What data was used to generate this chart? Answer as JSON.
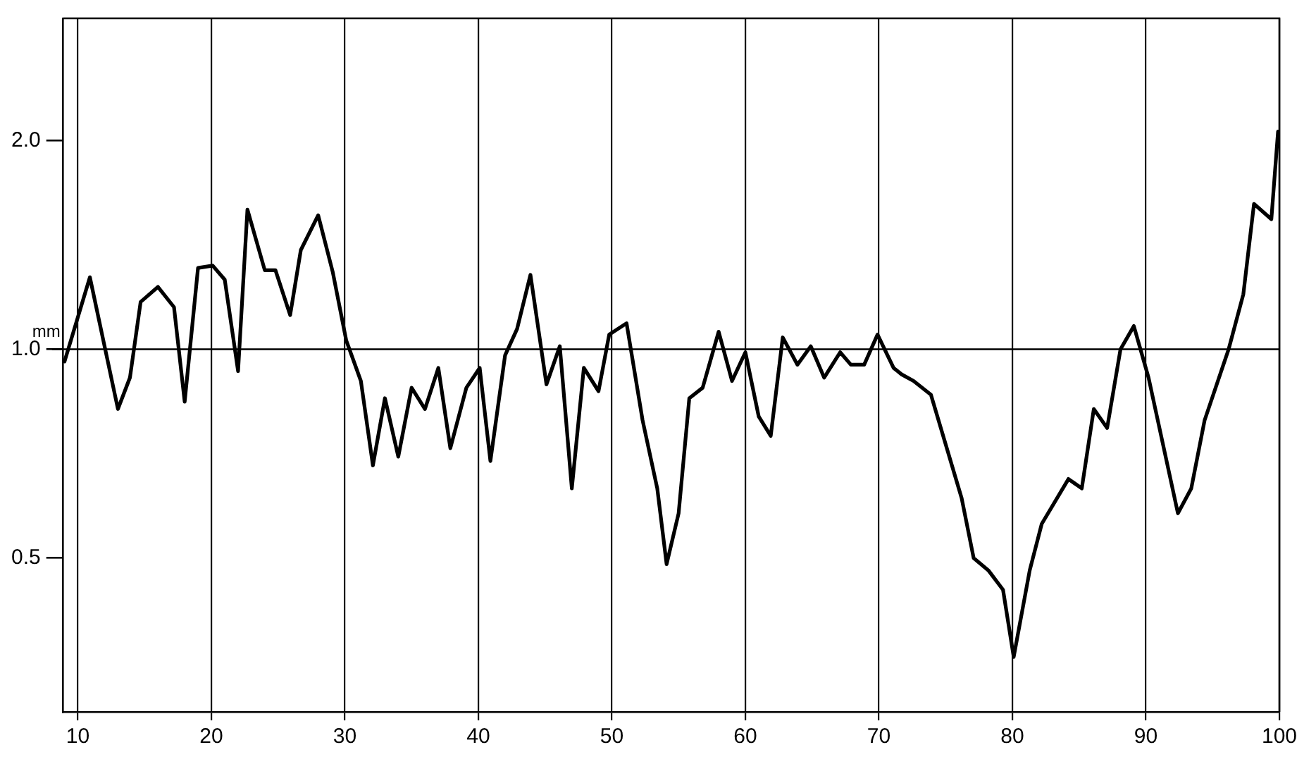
{
  "chart_data": {
    "type": "line",
    "ylabel": "mm",
    "log": "y",
    "grid": "x",
    "marker": "none",
    "line_style": "solid",
    "xlim": [
      8.9,
      100
    ],
    "xticks": [
      10,
      20,
      30,
      40,
      50,
      60,
      70,
      80,
      90,
      100
    ],
    "ylim": [
      0.3,
      3.0
    ],
    "yticks": [
      {
        "value": 0.5,
        "label": "0.5"
      },
      {
        "value": 1,
        "label": "1.0"
      },
      {
        "value": 2,
        "label": "2.0"
      }
    ],
    "ref_lines": [
      {
        "axis": "y",
        "value": 1,
        "color": "#000000"
      }
    ],
    "series": [
      {
        "color": "#000000",
        "x": [
          9.0,
          10.9,
          13.0,
          13.9,
          14.7,
          16.0,
          17.2,
          18.0,
          19.0,
          20.1,
          21.0,
          22.0,
          22.7,
          24.0,
          24.8,
          25.9,
          26.7,
          28.0,
          29.1,
          30.1,
          31.2,
          32.1,
          33.0,
          34.0,
          35.0,
          36.0,
          37.0,
          37.9,
          39.1,
          40.1,
          40.9,
          42.0,
          42.9,
          43.9,
          45.1,
          46.1,
          47.0,
          47.9,
          49.0,
          49.8,
          51.1,
          52.3,
          53.4,
          54.1,
          55.0,
          55.8,
          56.8,
          58.0,
          59.0,
          60.0,
          61.0,
          61.9,
          62.8,
          63.9,
          64.9,
          65.9,
          67.1,
          67.9,
          68.9,
          69.9,
          71.1,
          71.7,
          72.6,
          73.9,
          76.2,
          77.1,
          78.2,
          79.3,
          80.1,
          81.3,
          82.2,
          84.2,
          85.2,
          86.1,
          87.1,
          88.1,
          89.1,
          90.2,
          92.4,
          93.4,
          94.4,
          96.2,
          97.3,
          98.1,
          99.4,
          99.9
        ],
        "values": [
          0.96,
          1.27,
          0.82,
          0.91,
          1.17,
          1.23,
          1.15,
          0.84,
          1.31,
          1.32,
          1.26,
          0.93,
          1.59,
          1.3,
          1.3,
          1.12,
          1.39,
          1.56,
          1.29,
          1.03,
          0.9,
          0.68,
          0.85,
          0.7,
          0.88,
          0.82,
          0.94,
          0.72,
          0.88,
          0.94,
          0.69,
          0.98,
          1.07,
          1.28,
          0.89,
          1.01,
          0.63,
          0.94,
          0.87,
          1.05,
          1.09,
          0.79,
          0.63,
          0.49,
          0.58,
          0.85,
          0.88,
          1.06,
          0.9,
          0.99,
          0.8,
          0.75,
          1.04,
          0.95,
          1.01,
          0.91,
          0.99,
          0.95,
          0.95,
          1.05,
          0.94,
          0.92,
          0.9,
          0.86,
          0.61,
          0.5,
          0.48,
          0.45,
          0.36,
          0.48,
          0.56,
          0.65,
          0.63,
          0.82,
          0.77,
          1.0,
          1.08,
          0.91,
          0.58,
          0.63,
          0.79,
          1.0,
          1.2,
          1.62,
          1.54,
          2.06
        ]
      }
    ]
  }
}
